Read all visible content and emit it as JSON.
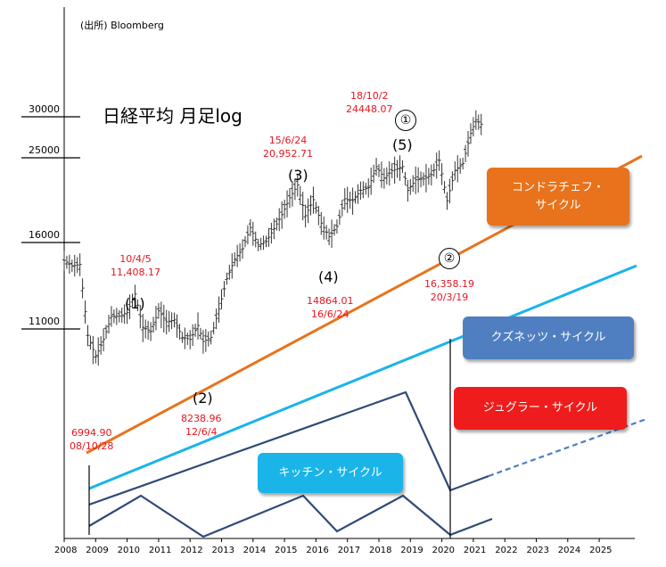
{
  "source": "(出所) Bloomberg",
  "title": "日経平均 月足log",
  "colors": {
    "candles": "#333333",
    "kondratieff": "#e8731c",
    "kuznets": "#1ab4e8",
    "juglar": "#2f4a78",
    "kitchin": "#2f4a78",
    "annotation": "#e8141e"
  },
  "chart_data": {
    "type": "line",
    "yscale": "log",
    "y_ticks": [
      "30000",
      "25000",
      "16000",
      "11000"
    ],
    "x_ticks": [
      "2008",
      "2009",
      "2010",
      "2011",
      "2012",
      "2013",
      "2014",
      "2015",
      "2016",
      "2017",
      "2018",
      "2019",
      "2020",
      "2021",
      "2022",
      "2023",
      "2024",
      "2025"
    ],
    "x": [
      "2008-01",
      "2008-04",
      "2008-07",
      "2008-10",
      "2009-01",
      "2009-04",
      "2009-07",
      "2009-10",
      "2010-01",
      "2010-04",
      "2010-07",
      "2010-10",
      "2011-01",
      "2011-04",
      "2011-07",
      "2011-10",
      "2012-01",
      "2012-04",
      "2012-06",
      "2012-09",
      "2012-12",
      "2013-03",
      "2013-06",
      "2013-09",
      "2013-12",
      "2014-03",
      "2014-06",
      "2014-09",
      "2014-12",
      "2015-03",
      "2015-06",
      "2015-09",
      "2015-12",
      "2016-03",
      "2016-06",
      "2016-09",
      "2016-12",
      "2017-03",
      "2017-06",
      "2017-09",
      "2017-12",
      "2018-03",
      "2018-06",
      "2018-10",
      "2018-12",
      "2019-03",
      "2019-06",
      "2019-09",
      "2019-12",
      "2020-03",
      "2020-06",
      "2020-09",
      "2020-12",
      "2021-02",
      "2021-04"
    ],
    "series": [
      {
        "values": [
          13600,
          13200,
          13300,
          9000,
          8000,
          8800,
          10000,
          10000,
          10200,
          11300,
          9400,
          9200,
          10300,
          9700,
          9800,
          8900,
          8800,
          9500,
          8700,
          8900,
          10400,
          12300,
          13700,
          14500,
          16300,
          14800,
          15100,
          16200,
          17500,
          19200,
          20600,
          17400,
          19000,
          16700,
          15500,
          16400,
          19100,
          18900,
          20000,
          20300,
          22800,
          21400,
          22300,
          22800,
          20000,
          21200,
          21300,
          21800,
          23600,
          18900,
          22300,
          23200,
          27400,
          29500,
          28800
        ]
      }
    ],
    "annotations": [
      {
        "date": "08/10/28",
        "value": "6994.90",
        "wave": ""
      },
      {
        "date": "10/4/5",
        "value": "11,408.17",
        "wave": "(1)"
      },
      {
        "date": "12/6/4",
        "value": "8238.96",
        "wave": "(2)"
      },
      {
        "date": "15/6/24",
        "value": "20,952.71",
        "wave": "(3)"
      },
      {
        "date": "16/6/24",
        "value": "14864.01",
        "wave": "(4)"
      },
      {
        "date": "18/10/2",
        "value": "24448.07",
        "wave": "(5)"
      },
      {
        "date": "20/3/19",
        "value": "16,358.19",
        "wave": ""
      }
    ],
    "circled": [
      "①",
      "②"
    ],
    "cycles": [
      {
        "name": "コンドラチェフ・サイクル",
        "line1": "コンドラチェフ・",
        "line2": "サイクル",
        "color": "#e8731c"
      },
      {
        "name": "クズネッツ・サイクル",
        "line1": "クズネッツ・サイクル",
        "line2": "",
        "color": "#4f7fc0"
      },
      {
        "name": "ジュグラー・サイクル",
        "line1": "ジュグラー・サイクル",
        "line2": "",
        "color": "#ee1c1c"
      },
      {
        "name": "キッチン・サイクル",
        "line1": "キッチン・サイクル",
        "line2": "",
        "color": "#1ab4e8"
      }
    ]
  }
}
